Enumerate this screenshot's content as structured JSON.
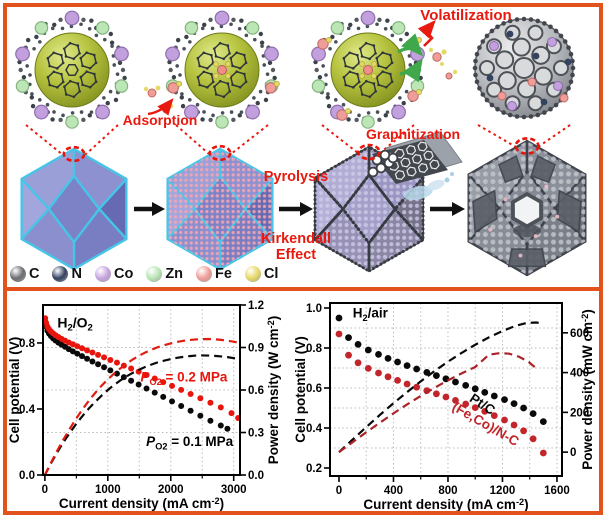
{
  "accent": {
    "border": "#e2521d",
    "red_label": "#e8190e"
  },
  "schematic": {
    "labels": {
      "adsorption": "Adsorption",
      "pyrolysis": "Pyrolysis",
      "kirkendall": "Kirkendall Effect",
      "graphitization": "Graphitization",
      "volatilization": "Volatilization"
    },
    "legend": [
      {
        "label": "C",
        "color": "#6b6d71"
      },
      {
        "label": "N",
        "color": "#32425f"
      },
      {
        "label": "Co",
        "color": "#c6a3e0"
      },
      {
        "label": "Zn",
        "color": "#b9e4b4"
      },
      {
        "label": "Fe",
        "color": "#ef9d98"
      },
      {
        "label": "Cl",
        "color": "#e6d965"
      }
    ]
  },
  "chart_data": [
    {
      "type": "scatter+line dual-axis polarization",
      "condition": "H2/O2",
      "xlabel": "Current density (mA cm^-2^)",
      "ylabel_left": "Cell potential (V)",
      "ylabel_right": "Power density (W cm^-2^)",
      "xlim": [
        -30,
        3100
      ],
      "xticks": [
        0,
        1000,
        2000,
        3000
      ],
      "xgrid": [
        500,
        1000,
        1500,
        2000,
        2500,
        3000
      ],
      "xminor": [
        500,
        1500,
        2500
      ],
      "ylim_left": [
        0,
        1.03
      ],
      "yticks_left": [
        "0.0",
        "0.4",
        "0.8"
      ],
      "ylim_right": [
        0,
        1.2
      ],
      "yticks_right": [
        "0.0",
        "0.3",
        "0.6",
        "0.9",
        "1.2"
      ],
      "ygrid": {
        "axis": "right",
        "values": [
          0.3,
          0.6,
          0.9
        ]
      },
      "series": [
        {
          "name": "P_O2 = 0.1 MPa polarization",
          "kind": "scatter",
          "axis": "left",
          "color": "#0a0a0a",
          "r": 3,
          "points": [
            [
              5,
              0.93
            ],
            [
              20,
              0.9
            ],
            [
              40,
              0.875
            ],
            [
              65,
              0.857
            ],
            [
              95,
              0.842
            ],
            [
              130,
              0.828
            ],
            [
              170,
              0.815
            ],
            [
              215,
              0.802
            ],
            [
              265,
              0.79
            ],
            [
              320,
              0.777
            ],
            [
              380,
              0.763
            ],
            [
              445,
              0.749
            ],
            [
              515,
              0.735
            ],
            [
              590,
              0.72
            ],
            [
              670,
              0.704
            ],
            [
              755,
              0.688
            ],
            [
              845,
              0.671
            ],
            [
              940,
              0.653
            ],
            [
              1040,
              0.634
            ],
            [
              1145,
              0.614
            ],
            [
              1255,
              0.593
            ],
            [
              1370,
              0.571
            ],
            [
              1490,
              0.548
            ],
            [
              1615,
              0.524
            ],
            [
              1745,
              0.499
            ],
            [
              1880,
              0.473
            ],
            [
              2020,
              0.446
            ],
            [
              2165,
              0.418
            ],
            [
              2315,
              0.389
            ],
            [
              2470,
              0.359
            ],
            [
              2630,
              0.329
            ],
            [
              2795,
              0.3
            ],
            [
              2900,
              0.28
            ]
          ]
        },
        {
          "name": "P_O2 = 0.2 MPa polarization",
          "kind": "scatter",
          "axis": "left",
          "color": "#e8150c",
          "r": 3,
          "points": [
            [
              5,
              0.95
            ],
            [
              20,
              0.922
            ],
            [
              40,
              0.9
            ],
            [
              65,
              0.884
            ],
            [
              95,
              0.87
            ],
            [
              130,
              0.858
            ],
            [
              170,
              0.847
            ],
            [
              215,
              0.836
            ],
            [
              265,
              0.825
            ],
            [
              320,
              0.814
            ],
            [
              380,
              0.803
            ],
            [
              445,
              0.792
            ],
            [
              515,
              0.78
            ],
            [
              590,
              0.768
            ],
            [
              670,
              0.755
            ],
            [
              755,
              0.742
            ],
            [
              845,
              0.728
            ],
            [
              940,
              0.713
            ],
            [
              1040,
              0.697
            ],
            [
              1145,
              0.681
            ],
            [
              1255,
              0.663
            ],
            [
              1370,
              0.645
            ],
            [
              1490,
              0.626
            ],
            [
              1615,
              0.606
            ],
            [
              1745,
              0.585
            ],
            [
              1880,
              0.563
            ],
            [
              2020,
              0.54
            ],
            [
              2165,
              0.516
            ],
            [
              2315,
              0.491
            ],
            [
              2470,
              0.465
            ],
            [
              2630,
              0.438
            ],
            [
              2795,
              0.41
            ],
            [
              2965,
              0.375
            ],
            [
              3070,
              0.345
            ]
          ]
        },
        {
          "name": "P_O2 = 0.1 MPa power density",
          "kind": "dash",
          "axis": "right",
          "color": "#0a0a0a",
          "width": 2.2,
          "points": [
            [
              0,
              0
            ],
            [
              100,
              0.085
            ],
            [
              200,
              0.163
            ],
            [
              300,
              0.235
            ],
            [
              400,
              0.3
            ],
            [
              500,
              0.362
            ],
            [
              600,
              0.418
            ],
            [
              700,
              0.47
            ],
            [
              800,
              0.517
            ],
            [
              900,
              0.56
            ],
            [
              1000,
              0.6
            ],
            [
              1100,
              0.636
            ],
            [
              1200,
              0.668
            ],
            [
              1300,
              0.697
            ],
            [
              1400,
              0.722
            ],
            [
              1500,
              0.744
            ],
            [
              1600,
              0.764
            ],
            [
              1700,
              0.781
            ],
            [
              1800,
              0.796
            ],
            [
              1900,
              0.808
            ],
            [
              2000,
              0.818
            ],
            [
              2100,
              0.827
            ],
            [
              2200,
              0.834
            ],
            [
              2300,
              0.839
            ],
            [
              2400,
              0.843
            ],
            [
              2500,
              0.844
            ],
            [
              2600,
              0.843
            ],
            [
              2700,
              0.841
            ],
            [
              2800,
              0.837
            ],
            [
              2900,
              0.832
            ],
            [
              3000,
              0.825
            ],
            [
              3100,
              0.817
            ]
          ]
        },
        {
          "name": "P_O2 = 0.2 MPa power density",
          "kind": "dash",
          "axis": "right",
          "color": "#e01b10",
          "width": 2.2,
          "points": [
            [
              0,
              0
            ],
            [
              100,
              0.09
            ],
            [
              200,
              0.175
            ],
            [
              300,
              0.255
            ],
            [
              400,
              0.33
            ],
            [
              500,
              0.4
            ],
            [
              600,
              0.465
            ],
            [
              700,
              0.525
            ],
            [
              800,
              0.58
            ],
            [
              900,
              0.63
            ],
            [
              1000,
              0.675
            ],
            [
              1100,
              0.716
            ],
            [
              1200,
              0.753
            ],
            [
              1300,
              0.787
            ],
            [
              1400,
              0.817
            ],
            [
              1500,
              0.843
            ],
            [
              1600,
              0.866
            ],
            [
              1700,
              0.886
            ],
            [
              1800,
              0.903
            ],
            [
              1900,
              0.917
            ],
            [
              2000,
              0.929
            ],
            [
              2100,
              0.939
            ],
            [
              2200,
              0.947
            ],
            [
              2300,
              0.953
            ],
            [
              2400,
              0.957
            ],
            [
              2500,
              0.959
            ],
            [
              2600,
              0.96
            ],
            [
              2700,
              0.958
            ],
            [
              2800,
              0.954
            ],
            [
              2900,
              0.948
            ],
            [
              3000,
              0.941
            ],
            [
              3100,
              0.932
            ]
          ]
        }
      ],
      "annotations": [
        {
          "text": "H~2~/O~2~",
          "x": 480,
          "y": 0.895,
          "color": "#000000",
          "size": 14
        },
        {
          "text": "*P*~O2~ = 0.2 MPa",
          "x": 2210,
          "y": 0.565,
          "color": "#e8150c",
          "size": 13.5
        },
        {
          "text": "*P*~O2~ = 0.1 MPa",
          "x": 2300,
          "y": 0.175,
          "color": "#000000",
          "size": 13.5
        }
      ]
    },
    {
      "type": "scatter+line dual-axis polarization",
      "condition": "H2/air",
      "xlabel": "Current density (mA cm^-2^)",
      "ylabel_left": "Cell potential (V)",
      "ylabel_right": "Power density (mW cm^-2^)",
      "xlim": [
        -66,
        1637
      ],
      "xticks": [
        0,
        400,
        800,
        1200,
        1600
      ],
      "xgrid": [
        200,
        400,
        600,
        800,
        1000,
        1200,
        1400,
        1600
      ],
      "xminor": [
        200,
        600,
        1000,
        1400
      ],
      "ylim_left": [
        0.16,
        1.025
      ],
      "yticks_left": [
        "0.2",
        "0.4",
        "0.6",
        "0.8",
        "1.0"
      ],
      "ylim_right": [
        -120,
        750
      ],
      "yticks_right": [
        "0",
        "200",
        "400",
        "600"
      ],
      "ygrid": {
        "axis": "left",
        "values": [
          0.3,
          0.4,
          0.5,
          0.6,
          0.7,
          0.8,
          0.9
        ]
      },
      "series": [
        {
          "name": "Pt/C polarization",
          "kind": "scatter",
          "axis": "left",
          "color": "#0a0a0a",
          "r": 3.4,
          "points": [
            [
              0,
              0.95
            ],
            [
              70,
              0.852
            ],
            [
              140,
              0.818
            ],
            [
              215,
              0.79
            ],
            [
              290,
              0.768
            ],
            [
              360,
              0.748
            ],
            [
              430,
              0.73
            ],
            [
              500,
              0.712
            ],
            [
              570,
              0.695
            ],
            [
              645,
              0.678
            ],
            [
              715,
              0.662
            ],
            [
              785,
              0.646
            ],
            [
              855,
              0.63
            ],
            [
              930,
              0.613
            ],
            [
              1000,
              0.596
            ],
            [
              1070,
              0.578
            ],
            [
              1140,
              0.56
            ],
            [
              1215,
              0.542
            ],
            [
              1285,
              0.522
            ],
            [
              1355,
              0.5
            ],
            [
              1425,
              0.472
            ],
            [
              1500,
              0.432
            ]
          ]
        },
        {
          "name": "(Fe,Co)/N-C polarization",
          "kind": "scatter",
          "axis": "left",
          "color": "#c2262b",
          "r": 3.4,
          "points": [
            [
              0,
              0.87
            ],
            [
              70,
              0.764
            ],
            [
              140,
              0.726
            ],
            [
              215,
              0.698
            ],
            [
              290,
              0.675
            ],
            [
              360,
              0.656
            ],
            [
              430,
              0.638
            ],
            [
              500,
              0.62
            ],
            [
              570,
              0.604
            ],
            [
              645,
              0.587
            ],
            [
              715,
              0.571
            ],
            [
              785,
              0.555
            ],
            [
              855,
              0.538
            ],
            [
              930,
              0.52
            ],
            [
              1000,
              0.502
            ],
            [
              1070,
              0.483
            ],
            [
              1140,
              0.462
            ],
            [
              1215,
              0.44
            ],
            [
              1285,
              0.415
            ],
            [
              1355,
              0.386
            ],
            [
              1425,
              0.346
            ],
            [
              1500,
              0.275
            ]
          ]
        },
        {
          "name": "Pt/C power density",
          "kind": "dash",
          "axis": "right",
          "color": "#0a0a0a",
          "width": 2.2,
          "points": [
            [
              0,
              0
            ],
            [
              100,
              63
            ],
            [
              200,
              126
            ],
            [
              300,
              187
            ],
            [
              400,
              246
            ],
            [
              500,
              302
            ],
            [
              600,
              356
            ],
            [
              700,
              407
            ],
            [
              800,
              455
            ],
            [
              900,
              499
            ],
            [
              1000,
              540
            ],
            [
              1100,
              577
            ],
            [
              1200,
              609
            ],
            [
              1300,
              636
            ],
            [
              1380,
              650
            ],
            [
              1450,
              652
            ],
            [
              1500,
              645
            ]
          ]
        },
        {
          "name": "(Fe,Co)/N-C power density",
          "kind": "dash",
          "axis": "right",
          "color": "#ab2328",
          "width": 2.2,
          "points": [
            [
              0,
              0
            ],
            [
              100,
              50
            ],
            [
              200,
              100
            ],
            [
              300,
              148
            ],
            [
              400,
              195
            ],
            [
              500,
              240
            ],
            [
              600,
              283
            ],
            [
              700,
              323
            ],
            [
              800,
              361
            ],
            [
              900,
              396
            ],
            [
              1000,
              428
            ],
            [
              1100,
              490
            ],
            [
              1180,
              498
            ],
            [
              1250,
              495
            ],
            [
              1320,
              480
            ],
            [
              1390,
              455
            ],
            [
              1450,
              420
            ]
          ]
        }
      ],
      "annotations": [
        {
          "text": "H~2~/air",
          "x": 230,
          "y": 0.952,
          "color": "#000000",
          "size": 13.5
        },
        {
          "text": "Pt/C",
          "x": 1035,
          "y": 0.5,
          "color": "#0a0a0a",
          "size": 13.5,
          "rotate": 33
        },
        {
          "text": "(Fe,Co)/N-C",
          "x": 1060,
          "y": 0.4,
          "color": "#c2262b",
          "size": 13.5,
          "rotate": 30
        }
      ]
    }
  ]
}
